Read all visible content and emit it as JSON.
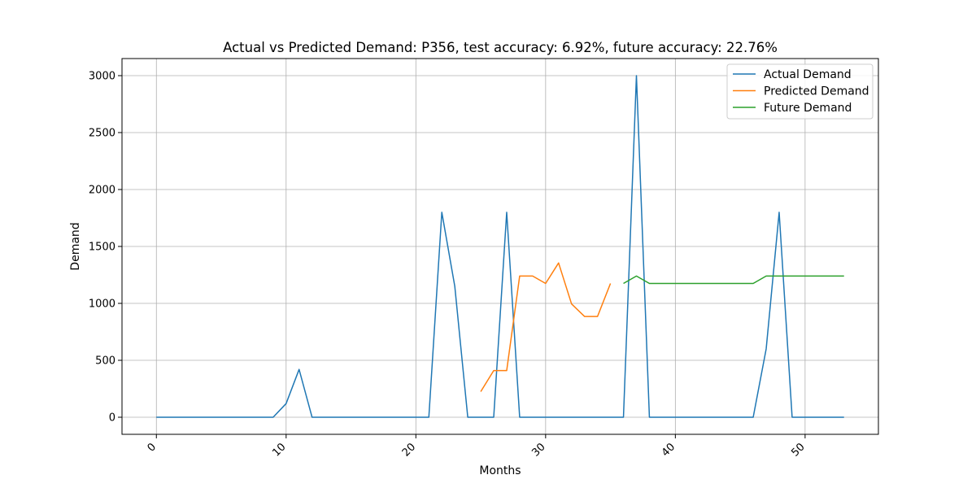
{
  "chart_data": {
    "type": "line",
    "title": "Actual vs Predicted Demand: P356, test accuracy: 6.92%, future accuracy: 22.76%",
    "xlabel": "Months",
    "ylabel": "Demand",
    "xlim": [
      -2.65,
      55.65
    ],
    "ylim": [
      -150,
      3150
    ],
    "xticks": [
      0,
      10,
      20,
      30,
      40,
      50
    ],
    "yticks": [
      0,
      500,
      1000,
      1500,
      2000,
      2500,
      3000
    ],
    "grid": true,
    "legend_position": "top-right",
    "series": [
      {
        "name": "Actual Demand",
        "color": "#1f77b4",
        "x": [
          0,
          1,
          2,
          3,
          4,
          5,
          6,
          7,
          8,
          9,
          10,
          11,
          12,
          13,
          14,
          15,
          16,
          17,
          18,
          19,
          20,
          21,
          22,
          23,
          24,
          25,
          26,
          27,
          28,
          29,
          30,
          31,
          32,
          33,
          34,
          35,
          36,
          37,
          38,
          39,
          40,
          41,
          42,
          43,
          44,
          45,
          46,
          47,
          48,
          49,
          50,
          51,
          52,
          53
        ],
        "y": [
          0,
          0,
          0,
          0,
          0,
          0,
          0,
          0,
          0,
          0,
          120,
          420,
          0,
          0,
          0,
          0,
          0,
          0,
          0,
          0,
          0,
          0,
          1800,
          1150,
          0,
          0,
          0,
          1800,
          0,
          0,
          0,
          0,
          0,
          0,
          0,
          0,
          0,
          3000,
          0,
          0,
          0,
          0,
          0,
          0,
          0,
          0,
          0,
          600,
          1800,
          0,
          0,
          0,
          0,
          0
        ]
      },
      {
        "name": "Predicted Demand",
        "color": "#ff7f0e",
        "x": [
          25,
          26,
          27,
          28,
          29,
          30,
          31,
          32,
          33,
          34,
          35
        ],
        "y": [
          225,
          410,
          410,
          1240,
          1240,
          1175,
          1355,
          995,
          885,
          885,
          1175
        ]
      },
      {
        "name": "Future Demand",
        "color": "#2ca02c",
        "x": [
          36,
          37,
          38,
          39,
          40,
          41,
          42,
          43,
          44,
          45,
          46,
          47,
          48,
          49,
          50,
          51,
          52,
          53
        ],
        "y": [
          1175,
          1240,
          1175,
          1175,
          1175,
          1175,
          1175,
          1175,
          1175,
          1175,
          1175,
          1240,
          1240,
          1240,
          1240,
          1240,
          1240,
          1240
        ]
      }
    ]
  }
}
